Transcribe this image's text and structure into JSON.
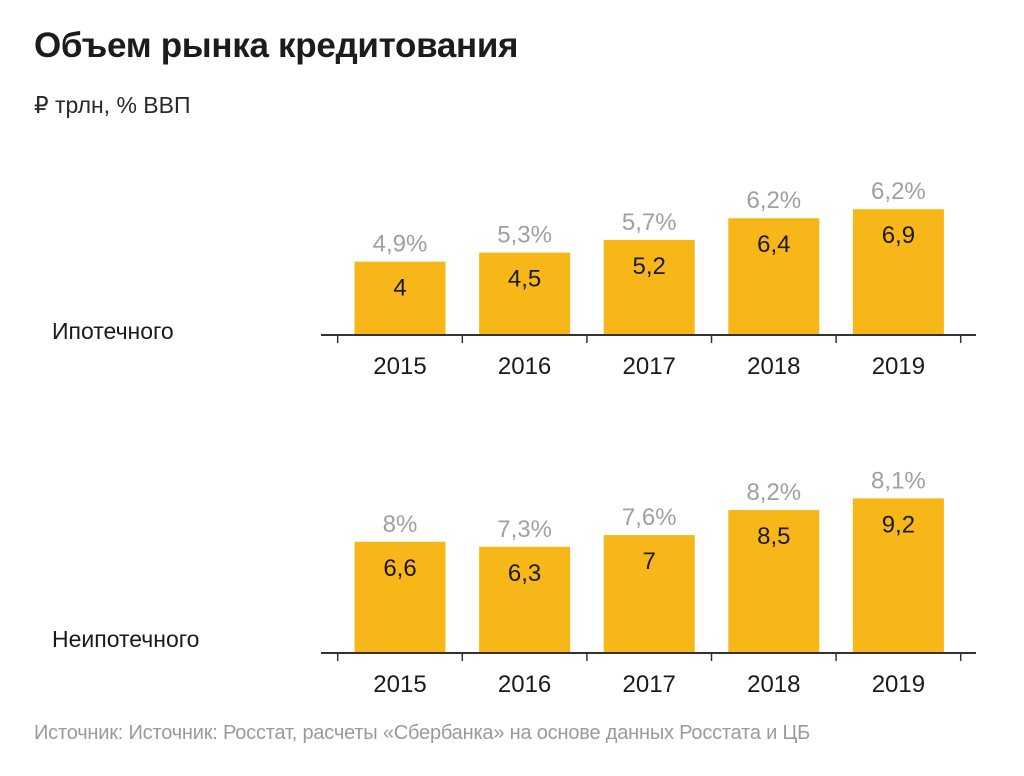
{
  "header": {
    "title": "Объем рынка кредитования",
    "subtitle": "₽ трлн, % ВВП"
  },
  "footer": {
    "source": "Источник: Источник: Росстат, расчеты «Сбербанка» на основе данных Росстата и ЦБ"
  },
  "colors": {
    "bar": "#f8b718",
    "percent_label": "#a0a0a0",
    "value_label": "#1a1a1a",
    "axis": "#333333"
  },
  "chart_data": [
    {
      "type": "bar",
      "panel_label": "Ипотечного",
      "title": "Объем рынка кредитования — Ипотечного",
      "xlabel": "",
      "ylabel": "₽ трлн",
      "categories": [
        "2015",
        "2016",
        "2017",
        "2018",
        "2019"
      ],
      "series": [
        {
          "name": "₽ трлн",
          "values": [
            4,
            4.5,
            5.2,
            6.4,
            6.9
          ],
          "labels": [
            "4",
            "4,5",
            "5,2",
            "6,4",
            "6,9"
          ]
        },
        {
          "name": "% ВВП",
          "values": [
            4.9,
            5.3,
            5.7,
            6.2,
            6.2
          ],
          "labels": [
            "4,9%",
            "5,3%",
            "5,7%",
            "6,2%",
            "6,2%"
          ]
        }
      ],
      "ylim": [
        0,
        9.2
      ],
      "grid": false,
      "legend": "none"
    },
    {
      "type": "bar",
      "panel_label": "Неипотечного",
      "title": "Объем рынка кредитования — Неипотечного",
      "xlabel": "",
      "ylabel": "₽ трлн",
      "categories": [
        "2015",
        "2016",
        "2017",
        "2018",
        "2019"
      ],
      "series": [
        {
          "name": "₽ трлн",
          "values": [
            6.6,
            6.3,
            7,
            8.5,
            9.2
          ],
          "labels": [
            "6,6",
            "6,3",
            "7",
            "8,5",
            "9,2"
          ]
        },
        {
          "name": "% ВВП",
          "values": [
            8,
            7.3,
            7.6,
            8.2,
            8.1
          ],
          "labels": [
            "8%",
            "7,3%",
            "7,6%",
            "8,2%",
            "8,1%"
          ]
        }
      ],
      "ylim": [
        0,
        9.2
      ],
      "grid": false,
      "legend": "none"
    }
  ]
}
